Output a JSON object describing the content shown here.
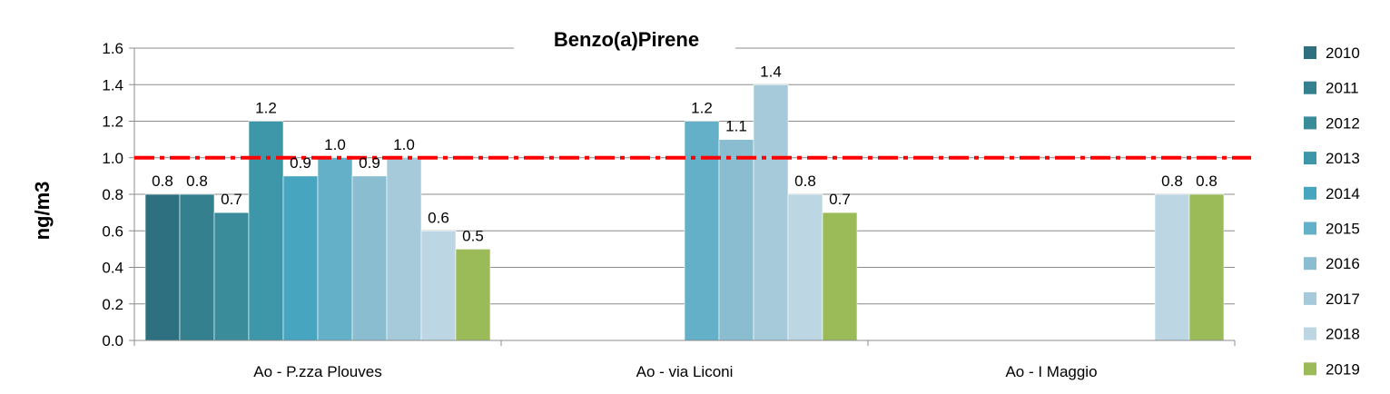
{
  "chart_data": {
    "type": "bar",
    "title": "Benzo(a)Pirene",
    "ylabel": "ng/m3",
    "xlabel": "",
    "ylim": [
      0,
      1.6
    ],
    "yticks": [
      "0.0",
      "0.2",
      "0.4",
      "0.6",
      "0.8",
      "1.0",
      "1.2",
      "1.4",
      "1.6"
    ],
    "grid": true,
    "legend_position": "right",
    "categories": [
      "Ao - P.zza Plouves",
      "Ao - via Liconi",
      "Ao - I Maggio"
    ],
    "reference_line": {
      "value": 1.0,
      "color": "#ff0000",
      "style": "dash-dot"
    },
    "series": [
      {
        "name": "2010",
        "color": "#2e7080",
        "values": [
          0.8,
          null,
          null
        ],
        "labels": [
          "0.8",
          "",
          ""
        ]
      },
      {
        "name": "2011",
        "color": "#34808f",
        "values": [
          0.8,
          null,
          null
        ],
        "labels": [
          "0.8",
          "",
          ""
        ]
      },
      {
        "name": "2012",
        "color": "#3b8c9b",
        "values": [
          0.7,
          null,
          null
        ],
        "labels": [
          "0.7",
          "",
          ""
        ]
      },
      {
        "name": "2013",
        "color": "#3e97a8",
        "values": [
          1.2,
          null,
          null
        ],
        "labels": [
          "1.2",
          "",
          ""
        ]
      },
      {
        "name": "2014",
        "color": "#48a5c0",
        "values": [
          0.9,
          null,
          null
        ],
        "labels": [
          "0.9",
          "",
          ""
        ]
      },
      {
        "name": "2015",
        "color": "#64b0c9",
        "values": [
          1.0,
          1.2,
          null
        ],
        "labels": [
          "1.0",
          "1.2",
          ""
        ]
      },
      {
        "name": "2016",
        "color": "#8bbdd0",
        "values": [
          0.9,
          1.1,
          null
        ],
        "labels": [
          "0.9",
          "1.1",
          ""
        ]
      },
      {
        "name": "2017",
        "color": "#a6cad9",
        "values": [
          1.0,
          1.4,
          null
        ],
        "labels": [
          "1.0",
          "1.4",
          ""
        ]
      },
      {
        "name": "2018",
        "color": "#bcd7e3",
        "values": [
          0.6,
          0.8,
          0.8
        ],
        "labels": [
          "0.6",
          "0.8",
          "0.8"
        ]
      },
      {
        "name": "2019",
        "color": "#9bbb59",
        "values": [
          0.5,
          0.7,
          0.8
        ],
        "labels": [
          "0.5",
          "0.7",
          "0.8"
        ]
      }
    ]
  }
}
